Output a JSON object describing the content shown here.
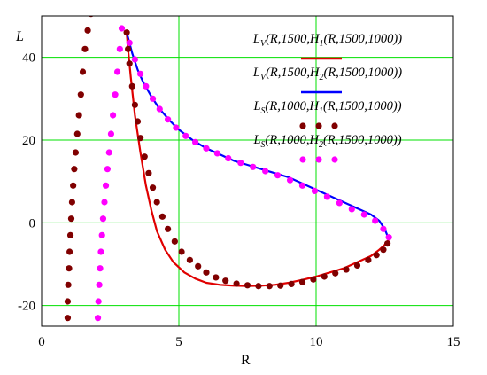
{
  "chart_data": {
    "type": "line",
    "title": "",
    "xlabel": "R",
    "ylabel": "L",
    "xlim": [
      0,
      15
    ],
    "ylim": [
      -25,
      50
    ],
    "x_ticks": [
      0,
      5,
      10,
      15
    ],
    "y_ticks": [
      -20,
      0,
      20,
      40
    ],
    "grid": true,
    "grid_color": "#00e000",
    "legend_position": "top-right",
    "series": [
      {
        "name": "L_V(R,1500,H_1(R,1500,1000))",
        "style": "line",
        "color": "#e00000",
        "x": [
          3.1,
          3.15,
          3.25,
          3.4,
          3.6,
          3.8,
          4.0,
          4.2,
          4.5,
          4.8,
          5.2,
          5.6,
          6.0,
          6.5,
          7.0,
          7.5,
          8.0,
          8.5,
          9.0,
          9.5,
          10.0,
          10.5,
          11.0,
          11.5,
          12.0,
          12.3,
          12.55,
          12.65
        ],
        "y": [
          46,
          42,
          35,
          26,
          17,
          9,
          3,
          -2,
          -6.5,
          -9.5,
          -12,
          -13.5,
          -14.5,
          -15,
          -15.2,
          -15.3,
          -15.2,
          -15,
          -14.5,
          -13.8,
          -13,
          -12,
          -11,
          -9.5,
          -8,
          -6.5,
          -5,
          -4
        ]
      },
      {
        "name": "L_V(R,1500,H_2(R,1500,1000))",
        "style": "line",
        "color": "#0000ff",
        "x": [
          3.1,
          3.3,
          3.5,
          3.7,
          4.0,
          4.3,
          4.7,
          5.0,
          5.5,
          6.0,
          6.5,
          7.0,
          7.5,
          8.0,
          8.5,
          9.0,
          9.5,
          10.0,
          10.5,
          11.0,
          11.5,
          12.0,
          12.3,
          12.5,
          12.65
        ],
        "y": [
          46,
          41,
          37,
          34,
          30.5,
          27.5,
          24.5,
          22.5,
          20,
          18,
          16.5,
          15,
          14,
          13,
          12,
          11,
          9.5,
          8,
          6.5,
          5,
          3.5,
          2,
          0.5,
          -1.5,
          -4
        ]
      },
      {
        "name": "L_S(R,1000,H_1(R,1500,1000))",
        "style": "dots",
        "color": "#800000",
        "x": [
          3.1,
          3.15,
          3.2,
          3.3,
          3.4,
          3.5,
          3.6,
          3.75,
          3.9,
          4.05,
          4.2,
          4.4,
          4.6,
          4.85,
          5.1,
          5.4,
          5.7,
          6.0,
          6.35,
          6.7,
          7.1,
          7.5,
          7.9,
          8.3,
          8.7,
          9.1,
          9.5,
          9.9,
          10.3,
          10.7,
          11.1,
          11.5,
          11.9,
          12.2,
          12.45,
          12.6
        ],
        "y": [
          46,
          42,
          38.5,
          33,
          28.5,
          24.5,
          20.5,
          16,
          12,
          8.5,
          5,
          1.5,
          -1.5,
          -4.5,
          -7,
          -9,
          -10.5,
          -12,
          -13.2,
          -14,
          -14.7,
          -15.1,
          -15.3,
          -15.3,
          -15.2,
          -14.8,
          -14.3,
          -13.7,
          -13,
          -12.2,
          -11.3,
          -10.3,
          -9,
          -7.8,
          -6.5,
          -5
        ]
      },
      {
        "name": "L_S(R,1000,H_2(R,1500,1000))",
        "style": "dots",
        "color": "#ff00ff",
        "x": [
          3.2,
          3.4,
          3.6,
          3.8,
          4.05,
          4.3,
          4.6,
          4.9,
          5.25,
          5.6,
          6.0,
          6.4,
          6.8,
          7.25,
          7.7,
          8.15,
          8.6,
          9.05,
          9.5,
          9.95,
          10.4,
          10.85,
          11.3,
          11.75,
          12.15,
          12.45,
          12.65
        ],
        "y": [
          43.5,
          39.5,
          36,
          33,
          30,
          27.5,
          25,
          23,
          21,
          19.5,
          18,
          16.8,
          15.6,
          14.5,
          13.5,
          12.5,
          11.5,
          10.3,
          9,
          7.7,
          6.3,
          4.8,
          3.3,
          2,
          0.5,
          -1.5,
          -3.5
        ]
      },
      {
        "name": "",
        "style": "dots",
        "color": "#800000",
        "x": [
          0.95,
          0.95,
          0.97,
          1.0,
          1.02,
          1.05,
          1.08,
          1.11,
          1.15,
          1.19,
          1.24,
          1.3,
          1.36,
          1.43,
          1.5
        ],
        "y": [
          -23,
          -19,
          -15,
          -11,
          -7,
          -3,
          1,
          5,
          9,
          13,
          17,
          21.5,
          26,
          31,
          36.5
        ]
      },
      {
        "name": "",
        "style": "dots",
        "color": "#800000",
        "x": [
          1.58,
          1.68,
          1.8
        ],
        "y": [
          42,
          46.5,
          50.5
        ]
      },
      {
        "name": "",
        "style": "dots",
        "color": "#ff00ff",
        "x": [
          2.05,
          2.07,
          2.1,
          2.13,
          2.16,
          2.2,
          2.24,
          2.29,
          2.34,
          2.4,
          2.46,
          2.53,
          2.6,
          2.68,
          2.76,
          2.85
        ],
        "y": [
          -23,
          -19,
          -15,
          -11,
          -7,
          -3,
          1,
          5,
          9,
          13,
          17,
          21.5,
          26,
          31,
          36.5,
          42
        ]
      },
      {
        "name": "",
        "style": "dots",
        "color": "#ff00ff",
        "x": [
          2.92
        ],
        "y": [
          47
        ]
      }
    ]
  }
}
